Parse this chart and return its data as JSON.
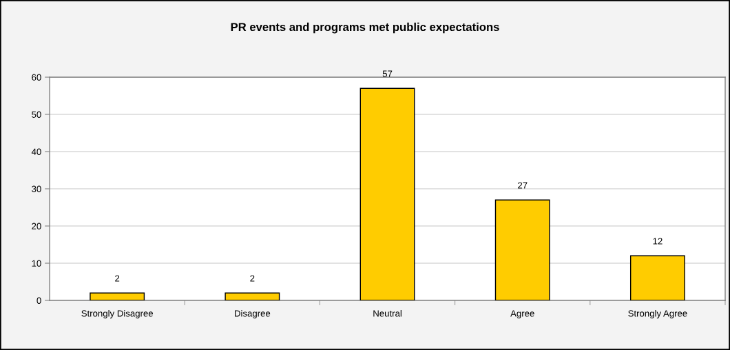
{
  "chart_data": {
    "type": "bar",
    "title": "PR events and programs met public expectations",
    "categories": [
      "Strongly Disagree",
      "Disagree",
      "Neutral",
      "Agree",
      "Strongly Agree"
    ],
    "values": [
      2,
      2,
      57,
      27,
      12
    ],
    "color": "#ffcc00",
    "ylim": [
      0,
      60
    ],
    "yticks": [
      0,
      10,
      20,
      30,
      40,
      50,
      60
    ],
    "grid": "y",
    "data_labels": true
  }
}
